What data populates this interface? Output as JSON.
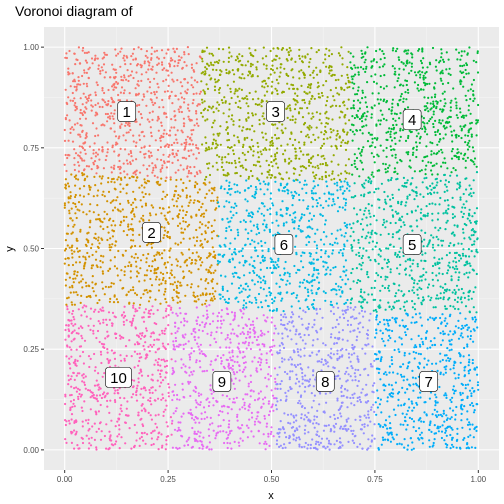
{
  "chart_data": {
    "type": "scatter",
    "title": "Voronoi diagram of",
    "xlabel": "x",
    "ylabel": "y",
    "xlim": [
      -0.05,
      1.05
    ],
    "ylim": [
      -0.05,
      1.05
    ],
    "grid": true,
    "legend": "none",
    "x_ticks": [
      {
        "value": 0.0,
        "label": "0.00"
      },
      {
        "value": 0.25,
        "label": "0.25"
      },
      {
        "value": 0.5,
        "label": "0.50"
      },
      {
        "value": 0.75,
        "label": "0.75"
      },
      {
        "value": 1.0,
        "label": "1.00"
      }
    ],
    "y_ticks": [
      {
        "value": 0.0,
        "label": "0.00"
      },
      {
        "value": 0.25,
        "label": "0.25"
      },
      {
        "value": 0.5,
        "label": "0.50"
      },
      {
        "value": 0.75,
        "label": "0.75"
      },
      {
        "value": 1.0,
        "label": "1.00"
      }
    ],
    "regions": [
      {
        "label": "1",
        "color": "#F8766D",
        "label_x": 0.15,
        "label_y": 0.84,
        "polygon": [
          [
            0,
            0.69
          ],
          [
            0,
            1
          ],
          [
            0.33,
            1
          ],
          [
            0.33,
            0.67
          ]
        ]
      },
      {
        "label": "2",
        "color": "#D39200",
        "label_x": 0.21,
        "label_y": 0.54,
        "polygon": [
          [
            0,
            0.36
          ],
          [
            0,
            0.69
          ],
          [
            0.33,
            0.67
          ],
          [
            0.37,
            0.62
          ],
          [
            0.37,
            0.36
          ],
          [
            0.26,
            0.36
          ]
        ]
      },
      {
        "label": "3",
        "color": "#93AA00",
        "label_x": 0.51,
        "label_y": 0.84,
        "polygon": [
          [
            0.33,
            1
          ],
          [
            0.69,
            1
          ],
          [
            0.69,
            0.67
          ],
          [
            0.37,
            0.67
          ],
          [
            0.33,
            0.67
          ]
        ]
      },
      {
        "label": "4",
        "color": "#00BA38",
        "label_x": 0.84,
        "label_y": 0.82,
        "polygon": [
          [
            0.69,
            1
          ],
          [
            1,
            1
          ],
          [
            1,
            0.69
          ],
          [
            0.69,
            0.67
          ]
        ]
      },
      {
        "label": "5",
        "color": "#00C19F",
        "label_x": 0.84,
        "label_y": 0.51,
        "polygon": [
          [
            0.69,
            0.67
          ],
          [
            1,
            0.69
          ],
          [
            1,
            0.34
          ],
          [
            0.75,
            0.34
          ],
          [
            0.69,
            0.36
          ]
        ]
      },
      {
        "label": "6",
        "color": "#00B9E3",
        "label_x": 0.53,
        "label_y": 0.51,
        "polygon": [
          [
            0.37,
            0.67
          ],
          [
            0.69,
            0.67
          ],
          [
            0.69,
            0.36
          ],
          [
            0.51,
            0.34
          ],
          [
            0.37,
            0.36
          ],
          [
            0.37,
            0.62
          ]
        ]
      },
      {
        "label": "7",
        "color": "#00ADFA",
        "label_x": 0.88,
        "label_y": 0.17,
        "polygon": [
          [
            0.75,
            0.34
          ],
          [
            1,
            0.34
          ],
          [
            1,
            0
          ],
          [
            0.75,
            0
          ]
        ]
      },
      {
        "label": "8",
        "color": "#9590FF",
        "label_x": 0.63,
        "label_y": 0.17,
        "polygon": [
          [
            0.51,
            0.34
          ],
          [
            0.69,
            0.36
          ],
          [
            0.75,
            0.34
          ],
          [
            0.75,
            0
          ],
          [
            0.51,
            0
          ]
        ]
      },
      {
        "label": "9",
        "color": "#E76BF3",
        "label_x": 0.38,
        "label_y": 0.17,
        "polygon": [
          [
            0.26,
            0.36
          ],
          [
            0.37,
            0.36
          ],
          [
            0.51,
            0.34
          ],
          [
            0.51,
            0
          ],
          [
            0.26,
            0
          ]
        ]
      },
      {
        "label": "10",
        "color": "#FF62BC",
        "label_x": 0.13,
        "label_y": 0.18,
        "polygon": [
          [
            0,
            0
          ],
          [
            0,
            0.36
          ],
          [
            0.26,
            0.36
          ],
          [
            0.26,
            0
          ]
        ]
      }
    ]
  }
}
